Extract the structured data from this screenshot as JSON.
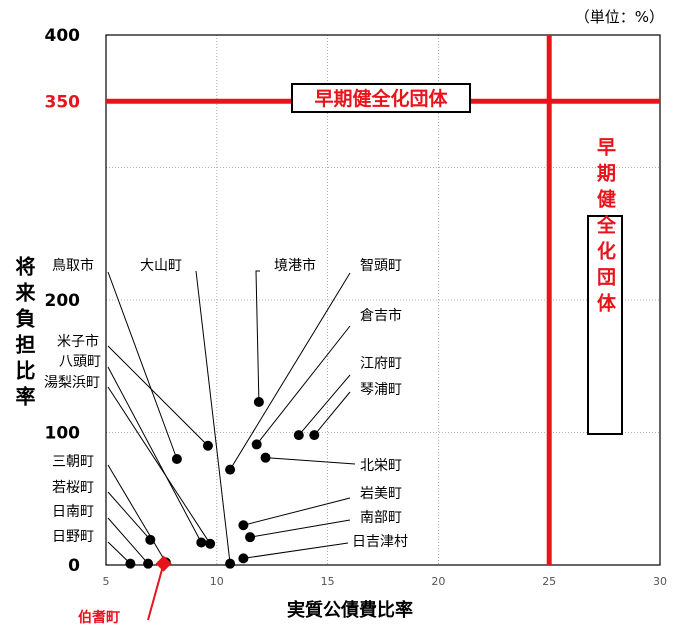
{
  "chart_data": {
    "type": "scatter",
    "unit_note": "（単位：%）",
    "xlabel": "実質公債費比率",
    "ylabel": "将来負担比率",
    "xlim": [
      5,
      30
    ],
    "ylim": [
      0,
      400
    ],
    "x_ticks": [
      "5",
      "10",
      "15",
      "20",
      "25",
      "30"
    ],
    "y_ticks": [
      "0",
      "100",
      "200",
      "350",
      "400"
    ],
    "y_tick_values": [
      0,
      100,
      200,
      350,
      400
    ],
    "highlight_y_tick": "350",
    "grid": true,
    "thresholds": {
      "x": 25,
      "y": 350,
      "color": "#e8141c"
    },
    "zone_labels": {
      "top": "早期健全化団体",
      "right": "早期健全化団体"
    },
    "marker_color": "#000000",
    "highlight_color": "#e8141c",
    "points": [
      {
        "name": "鳥取市",
        "x": 8.2,
        "y": 80
      },
      {
        "name": "米子市",
        "x": 9.6,
        "y": 90
      },
      {
        "name": "八頭町",
        "x": 9.3,
        "y": 17
      },
      {
        "name": "湯梨浜町",
        "x": 9.7,
        "y": 16
      },
      {
        "name": "三朝町",
        "x": 7.7,
        "y": 2
      },
      {
        "name": "若桜町",
        "x": 7.0,
        "y": 19
      },
      {
        "name": "日南町",
        "x": 6.9,
        "y": 1
      },
      {
        "name": "日野町",
        "x": 6.1,
        "y": 1
      },
      {
        "name": "大山町",
        "x": 10.6,
        "y": 1
      },
      {
        "name": "境港市",
        "x": 11.9,
        "y": 123
      },
      {
        "name": "智頭町",
        "x": 10.6,
        "y": 72
      },
      {
        "name": "倉吉市",
        "x": 11.8,
        "y": 91
      },
      {
        "name": "江府町",
        "x": 13.7,
        "y": 98
      },
      {
        "name": "琴浦町",
        "x": 14.4,
        "y": 98
      },
      {
        "name": "北栄町",
        "x": 12.2,
        "y": 81
      },
      {
        "name": "岩美町",
        "x": 11.2,
        "y": 30
      },
      {
        "name": "南部町",
        "x": 11.5,
        "y": 21
      },
      {
        "name": "日吉津村",
        "x": 11.2,
        "y": 5
      },
      {
        "name": "伯耆町",
        "x": 7.6,
        "y": 1,
        "highlight": true
      }
    ]
  }
}
